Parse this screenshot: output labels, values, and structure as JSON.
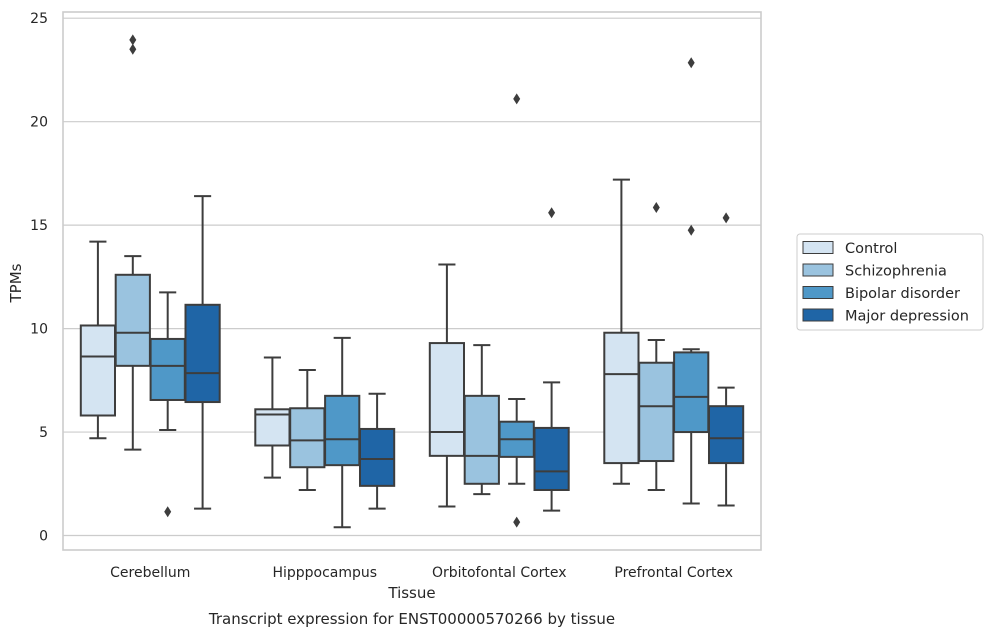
{
  "chart_data": {
    "type": "box",
    "title": "",
    "caption": "Transcript expression for ENST00000570266 by tissue",
    "xlabel": "Tissue",
    "ylabel": "TPMs",
    "ylim": [
      -0.7,
      25.3
    ],
    "yticks": [
      0,
      5,
      10,
      15,
      20,
      25
    ],
    "grid": "horizontal",
    "legend_position": "right",
    "categories": [
      "Cerebellum",
      "Hipppocampus",
      "Orbitofontal Cortex",
      "Prefrontal Cortex"
    ],
    "series": [
      {
        "name": "Control",
        "color": "#d4e4f2",
        "boxes": [
          {
            "whislo": 4.7,
            "q1": 5.8,
            "med": 8.65,
            "q3": 10.15,
            "whishi": 14.2,
            "fliers": []
          },
          {
            "whislo": 2.8,
            "q1": 4.35,
            "med": 5.85,
            "q3": 6.1,
            "whishi": 8.6,
            "fliers": []
          },
          {
            "whislo": 1.4,
            "q1": 3.85,
            "med": 5.0,
            "q3": 9.3,
            "whishi": 13.1,
            "fliers": []
          },
          {
            "whislo": 2.5,
            "q1": 3.5,
            "med": 7.8,
            "q3": 9.8,
            "whishi": 17.2,
            "fliers": []
          }
        ]
      },
      {
        "name": "Schizophrenia",
        "color": "#9ac3df",
        "boxes": [
          {
            "whislo": 4.15,
            "q1": 8.2,
            "med": 9.8,
            "q3": 12.6,
            "whishi": 13.5,
            "fliers": [
              23.5,
              23.95
            ]
          },
          {
            "whislo": 2.2,
            "q1": 3.3,
            "med": 4.6,
            "q3": 6.15,
            "whishi": 8.0,
            "fliers": []
          },
          {
            "whislo": 2.0,
            "q1": 2.5,
            "med": 3.85,
            "q3": 6.75,
            "whishi": 9.2,
            "fliers": []
          },
          {
            "whislo": 2.2,
            "q1": 3.6,
            "med": 6.25,
            "q3": 8.35,
            "whishi": 9.45,
            "fliers": [
              15.85
            ]
          }
        ]
      },
      {
        "name": "Bipolar disorder",
        "color": "#4f98c8",
        "boxes": [
          {
            "whislo": 5.1,
            "q1": 6.55,
            "med": 8.2,
            "q3": 9.5,
            "whishi": 11.75,
            "fliers": [
              1.15
            ]
          },
          {
            "whislo": 0.4,
            "q1": 3.4,
            "med": 4.65,
            "q3": 6.75,
            "whishi": 9.55,
            "fliers": []
          },
          {
            "whislo": 2.5,
            "q1": 3.8,
            "med": 4.65,
            "q3": 5.5,
            "whishi": 6.6,
            "fliers": [
              21.1,
              0.65
            ]
          },
          {
            "whislo": 1.55,
            "q1": 5.0,
            "med": 6.7,
            "q3": 8.85,
            "whishi": 9.0,
            "fliers": [
              22.85,
              14.75
            ]
          }
        ]
      },
      {
        "name": "Major depression",
        "color": "#1f65a6",
        "boxes": [
          {
            "whislo": 1.3,
            "q1": 6.45,
            "med": 7.85,
            "q3": 11.15,
            "whishi": 16.4,
            "fliers": []
          },
          {
            "whislo": 1.3,
            "q1": 2.4,
            "med": 3.7,
            "q3": 5.15,
            "whishi": 6.85,
            "fliers": []
          },
          {
            "whislo": 1.2,
            "q1": 2.2,
            "med": 3.1,
            "q3": 5.2,
            "whishi": 7.4,
            "fliers": [
              15.6
            ]
          },
          {
            "whislo": 1.45,
            "q1": 3.5,
            "med": 4.7,
            "q3": 6.25,
            "whishi": 7.15,
            "fliers": [
              15.35
            ]
          }
        ]
      }
    ]
  }
}
